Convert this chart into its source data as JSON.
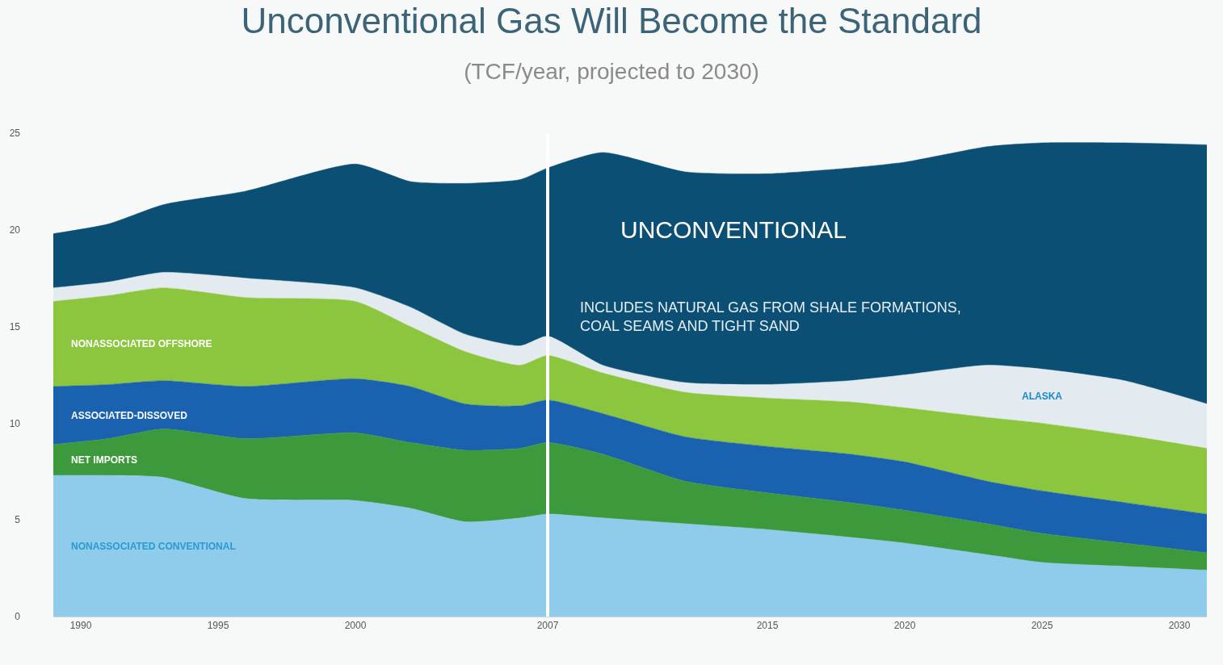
{
  "chart_data": {
    "type": "area",
    "stacked": true,
    "title": "Unconventional Gas Will Become the Standard",
    "subtitle": "(TCF/year, projected to 2030)",
    "x": [
      1989,
      1991,
      1993,
      1996,
      2000,
      2002,
      2004,
      2006,
      2007,
      2009,
      2012,
      2015,
      2018,
      2020,
      2023,
      2025,
      2028,
      2031
    ],
    "series": [
      {
        "name": "NONASSOCIATED CONVENTIONAL",
        "color": "#8fcbea",
        "values": [
          7.3,
          7.3,
          7.2,
          6.1,
          6.0,
          5.6,
          4.9,
          5.1,
          5.3,
          5.1,
          4.8,
          4.5,
          4.1,
          3.8,
          3.2,
          2.8,
          2.6,
          2.4
        ]
      },
      {
        "name": "NET IMPORTS",
        "color": "#3c9a3c",
        "values": [
          1.6,
          1.9,
          2.5,
          3.1,
          3.5,
          3.4,
          3.7,
          3.6,
          3.7,
          3.3,
          2.2,
          1.9,
          1.8,
          1.7,
          1.6,
          1.5,
          1.2,
          0.9
        ]
      },
      {
        "name": "ASSOCIATED-DISSOVED",
        "color": "#1a62b0",
        "values": [
          3.0,
          2.8,
          2.5,
          2.7,
          2.8,
          2.9,
          2.4,
          2.2,
          2.2,
          2.1,
          2.3,
          2.4,
          2.5,
          2.5,
          2.2,
          2.2,
          2.1,
          2.0
        ]
      },
      {
        "name": "NONASSOCIATED OFFSHORE",
        "color": "#8cc63f",
        "values": [
          4.4,
          4.6,
          4.8,
          4.6,
          4.0,
          3.1,
          2.7,
          2.1,
          2.3,
          2.1,
          2.3,
          2.5,
          2.7,
          2.8,
          3.3,
          3.5,
          3.5,
          3.4
        ]
      },
      {
        "name": "ALASKA",
        "color": "#e3ebf0",
        "values": [
          0.7,
          0.7,
          0.8,
          1.0,
          0.7,
          1.0,
          0.9,
          1.0,
          1.0,
          0.4,
          0.5,
          0.7,
          1.1,
          1.7,
          2.7,
          2.8,
          2.8,
          2.3
        ]
      },
      {
        "name": "UNCONVENTIONAL",
        "color": "#0b4f74",
        "values": [
          2.8,
          3.0,
          3.5,
          4.5,
          6.4,
          6.5,
          7.8,
          8.6,
          8.7,
          11.0,
          10.9,
          10.9,
          11.0,
          11.0,
          11.3,
          11.7,
          12.3,
          13.4
        ]
      }
    ],
    "annotations": [
      "INCLUDES NATURAL GAS FROM SHALE FORMATIONS,\nCOAL SEAMS AND TIGHT SAND"
    ],
    "ref_lines": [
      {
        "axis": "x",
        "value": 2007,
        "label": null,
        "color": "#ffffff"
      }
    ],
    "xlim": [
      1989,
      2031
    ],
    "xticks": [
      1990,
      1995,
      2000,
      2007,
      2015,
      2020,
      2025,
      2030
    ],
    "ylim": [
      0,
      25
    ],
    "yticks": [
      0,
      5,
      10,
      15,
      20,
      25
    ],
    "grid": false
  }
}
